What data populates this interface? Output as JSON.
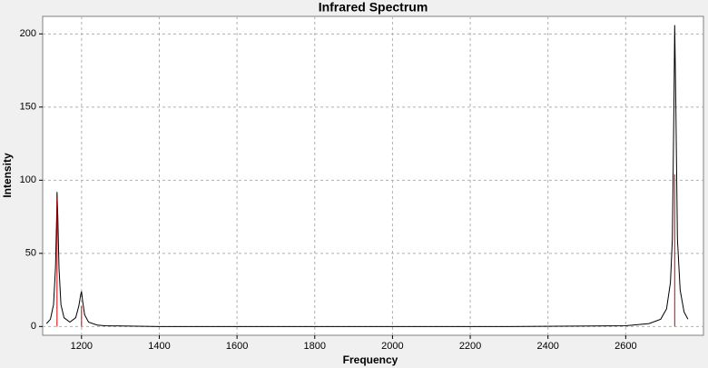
{
  "chart_data": {
    "type": "line",
    "title": "Infrared Spectrum",
    "x_label": "Frequency",
    "y_label": "Intensity",
    "xlim": [
      1100,
      2800
    ],
    "ylim": [
      -6,
      212
    ],
    "xticks": [
      1200,
      1400,
      1600,
      1800,
      2000,
      2200,
      2400,
      2600
    ],
    "yticks": [
      0,
      50,
      100,
      150,
      200
    ],
    "grid": true,
    "series": [
      {
        "mark": "line",
        "color": "#000000",
        "x": [
          1110,
          1120,
          1128,
          1133,
          1136,
          1137,
          1139,
          1142,
          1147,
          1155,
          1170,
          1185,
          1193,
          1198,
          1200,
          1203,
          1208,
          1218,
          1240,
          1260,
          1400,
          1920,
          2300,
          2600,
          2660,
          2690,
          2705,
          2715,
          2720,
          2724,
          2726,
          2729,
          2733,
          2740,
          2750,
          2760
        ],
        "values": [
          2,
          5,
          15,
          40,
          75,
          92,
          75,
          40,
          15,
          6,
          3,
          6,
          14,
          22,
          24,
          17,
          8,
          3,
          1,
          0.5,
          0,
          0,
          0,
          0.5,
          2,
          5,
          12,
          30,
          60,
          150,
          206,
          150,
          60,
          25,
          10,
          5
        ]
      },
      {
        "mark": "stick",
        "color": "#cc0000",
        "x": [
          1137,
          1200,
          2726
        ],
        "values": [
          88,
          14,
          104
        ]
      }
    ]
  }
}
